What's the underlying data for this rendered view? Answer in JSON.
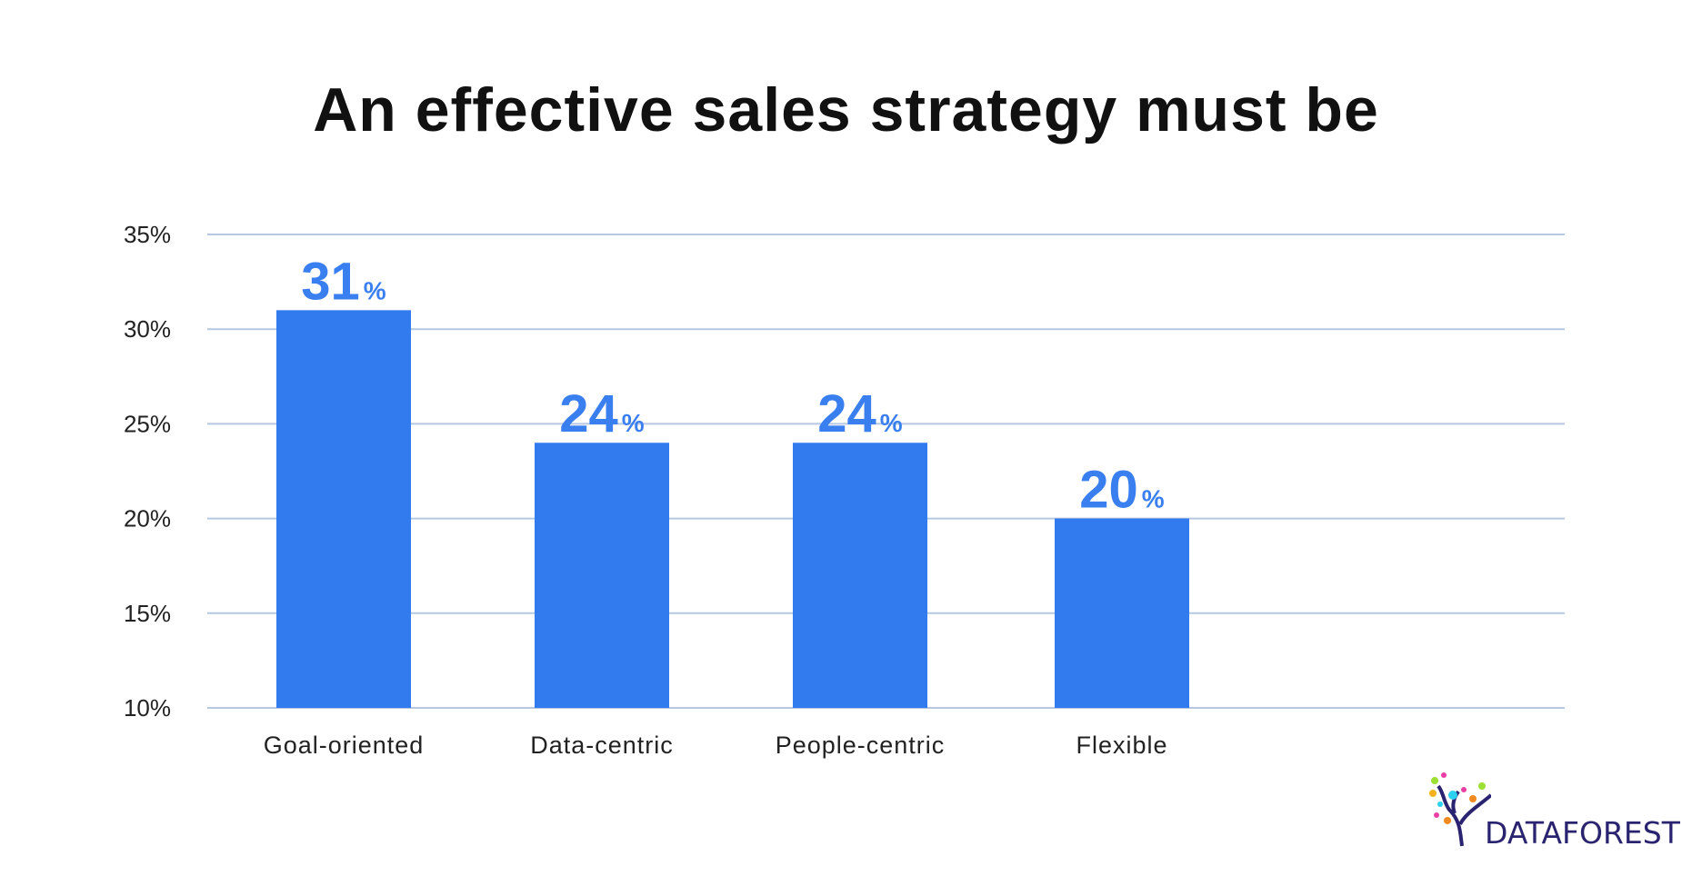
{
  "chart_data": {
    "type": "bar",
    "title": "An effective sales strategy must be",
    "categories": [
      "Goal-oriented",
      "Data-centric",
      "People-centric",
      "Flexible"
    ],
    "values": [
      31,
      24,
      24,
      20
    ],
    "data_labels": [
      "31",
      "24",
      "24",
      "20"
    ],
    "data_label_unit": "%",
    "yticks": [
      "10%",
      "15%",
      "20%",
      "25%",
      "30%",
      "35%"
    ],
    "ylim": [
      10,
      35
    ],
    "grid": true,
    "bar_color": "#327bee",
    "grid_color": "#b6c8e0"
  },
  "logo": {
    "text": "DATAFOREST"
  }
}
